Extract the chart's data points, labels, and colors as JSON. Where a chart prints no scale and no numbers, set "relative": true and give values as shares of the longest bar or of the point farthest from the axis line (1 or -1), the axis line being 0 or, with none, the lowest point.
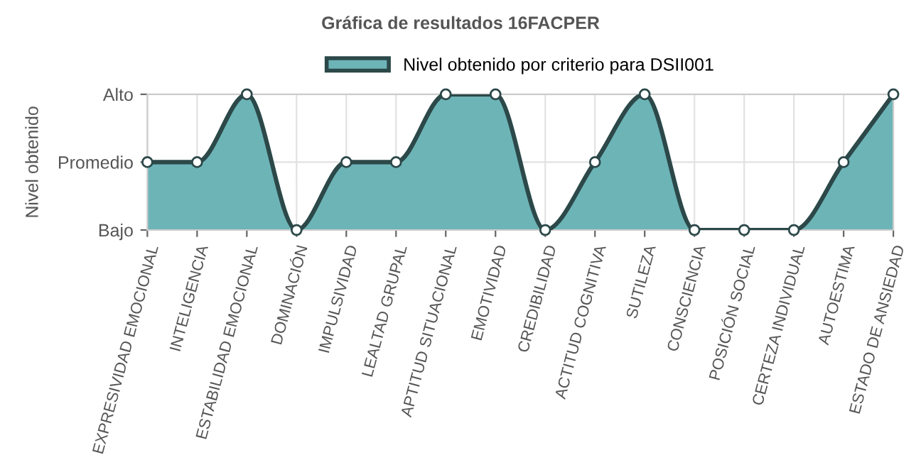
{
  "chart_data": {
    "type": "area",
    "title": "Gráfica de resultados 16FACPER",
    "ylabel": "Nivel obtenido",
    "categories": [
      "EXPRESIVIDAD EMOCIONAL",
      "INTELIGENCIA",
      "ESTABILIDAD EMOCIONAL",
      "DOMINACIÓN",
      "IMPULSIVIDAD",
      "LEALTAD GRUPAL",
      "APTITUD SITUACIONAL",
      "EMOTIVIDAD",
      "CREDIBILIDAD",
      "ACTITUD COGNITIVA",
      "SUTILEZA",
      "CONSCIENCIA",
      "POSICIÓN SOCIAL",
      "CERTEZA INDIVIDUAL",
      "AUTOESTIMA",
      "ESTADO DE ANSIEDAD"
    ],
    "series": [
      {
        "name": "Nivel obtenido por criterio para DSII001",
        "color": "#6db4b7",
        "values": [
          0.5,
          0.5,
          1,
          0,
          0.5,
          0.5,
          1,
          1,
          0,
          0.5,
          1,
          0,
          0,
          0,
          0.5,
          1
        ]
      }
    ],
    "relative": true,
    "annotations": [
      "Bajo",
      "Promedio",
      "Alto"
    ],
    "grid": true,
    "legend": "top",
    "marker": "circle",
    "line_style": "solid"
  }
}
